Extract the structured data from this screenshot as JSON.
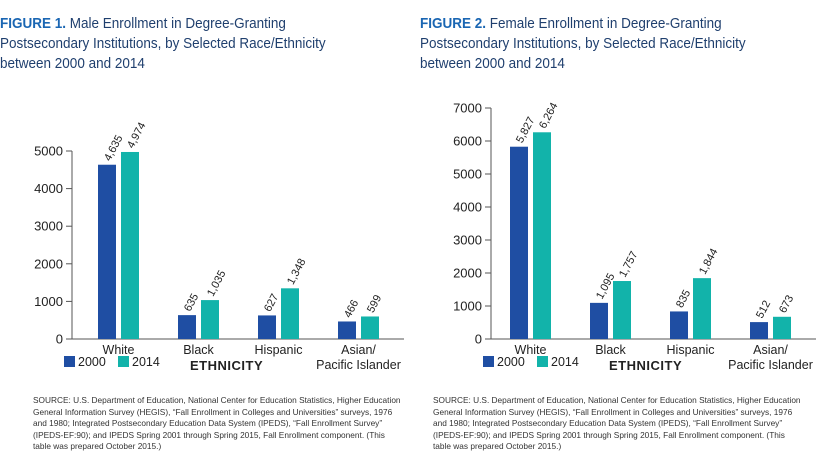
{
  "colors": {
    "series2000": "#1f4ea3",
    "series2014": "#12b3aa",
    "title_accent": "#1a66b3",
    "title_text": "#1f3f6e"
  },
  "figures": [
    {
      "fig_label": "FIGURE 1.",
      "title": "Male Enrollment in Degree-Granting Postsecondary Institutions, by Selected Race/Ethnicity between 2000 and 2014",
      "xlabel": "ETHNICITY",
      "source": "SOURCE: U.S. Department of Education, National Center for Education Statistics, Higher Education General Information Survey (HEGIS), “Fall Enrollment in Colleges and Universities” surveys, 1976 and 1980; Integrated Postsecondary Education Data System (IPEDS), “Fall Enrollment Survey” (IPEDS-EF:90); and IPEDS Spring 2001 through Spring 2015, Fall Enrollment component. (This table was prepared October 2015.)"
    },
    {
      "fig_label": "FIGURE 2.",
      "title": "Female Enrollment in Degree-Granting Postsecondary Institutions, by Selected Race/Ethnicity between 2000 and 2014",
      "xlabel": "ETHNICITY",
      "source": "SOURCE: U.S. Department of Education, National Center for Education Statistics, Higher Education General Information Survey (HEGIS), “Fall Enrollment in Colleges and Universities” surveys, 1976 and 1980; Integrated Postsecondary Education Data System (IPEDS), “Fall Enrollment Survey” (IPEDS-EF:90); and IPEDS Spring 2001 through Spring 2015, Fall Enrollment component. (This table was prepared October 2015.)"
    }
  ],
  "chart_data": [
    {
      "type": "bar",
      "categories": [
        "White",
        "Black",
        "Hispanic",
        "Asian/Pacific Islander"
      ],
      "series": [
        {
          "name": "2000",
          "values": [
            4635,
            635,
            627,
            466
          ],
          "labels": [
            "4,635",
            "635",
            "627",
            "466"
          ]
        },
        {
          "name": "2014",
          "values": [
            4974,
            1035,
            1348,
            599
          ],
          "labels": [
            "4,974",
            "1,035",
            "1,348",
            "599"
          ]
        }
      ],
      "title": "Male Enrollment in Degree-Granting Postsecondary Institutions, by Selected Race/Ethnicity between 2000 and 2014",
      "xlabel": "ETHNICITY",
      "ylabel": "",
      "ylim": [
        0,
        5000
      ],
      "yticks": [
        0,
        1000,
        2000,
        3000,
        4000,
        5000
      ],
      "legend": "bottom-left",
      "grid": false
    },
    {
      "type": "bar",
      "categories": [
        "White",
        "Black",
        "Hispanic",
        "Asian/Pacific Islander"
      ],
      "series": [
        {
          "name": "2000",
          "values": [
            5827,
            1095,
            835,
            512
          ],
          "labels": [
            "5,827",
            "1,095",
            "835",
            "512"
          ]
        },
        {
          "name": "2014",
          "values": [
            6264,
            1757,
            1844,
            673
          ],
          "labels": [
            "6,264",
            "1,757",
            "1,844",
            "673"
          ]
        }
      ],
      "title": "Female Enrollment in Degree-Granting Postsecondary Institutions, by Selected Race/Ethnicity between 2000 and 2014",
      "xlabel": "ETHNICITY",
      "ylabel": "",
      "ylim": [
        0,
        7000
      ],
      "yticks": [
        0,
        1000,
        2000,
        3000,
        4000,
        5000,
        6000,
        7000
      ],
      "legend": "bottom-left",
      "grid": false
    }
  ]
}
